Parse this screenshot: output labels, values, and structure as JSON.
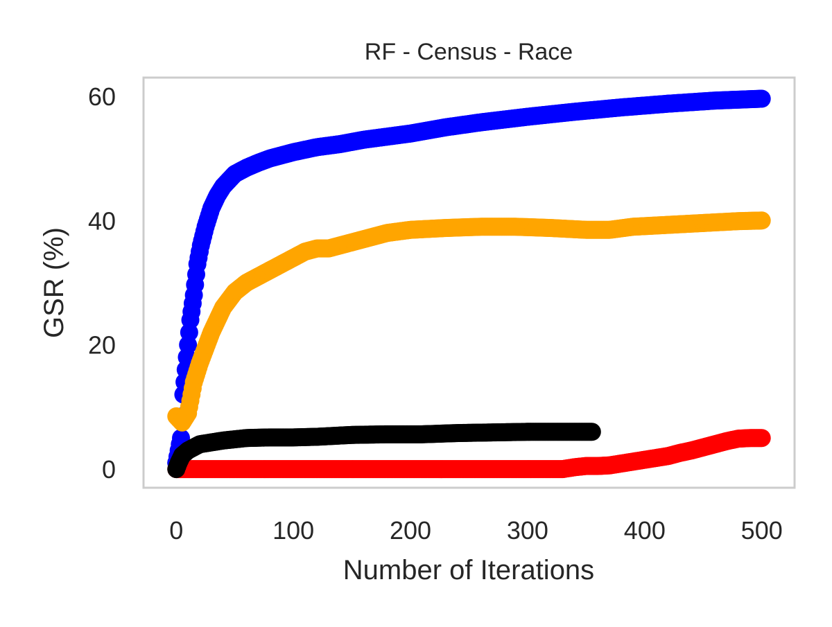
{
  "chart_data": {
    "type": "scatter",
    "title": "RF - Census - Race",
    "xlabel": "Number of Iterations",
    "ylabel": "GSR (%)",
    "xlim": [
      -28,
      528
    ],
    "ylim": [
      -3,
      63
    ],
    "xticks": [
      0,
      100,
      200,
      300,
      400,
      500
    ],
    "yticks": [
      0,
      20,
      40,
      60
    ],
    "grid": false,
    "legend": "none",
    "frame_color": "#cccccc",
    "series": [
      {
        "color": "#0000ff",
        "x": [
          0,
          2,
          4,
          6,
          8,
          10,
          12,
          15,
          18,
          21,
          25,
          30,
          35,
          40,
          50,
          60,
          70,
          80,
          90,
          100,
          120,
          140,
          160,
          180,
          200,
          230,
          260,
          300,
          340,
          380,
          420,
          460,
          500
        ],
        "y": [
          1,
          3,
          5,
          12,
          16,
          20,
          24,
          28,
          33,
          36,
          39,
          42,
          44,
          45.5,
          47.5,
          48.5,
          49.3,
          50,
          50.5,
          51,
          51.8,
          52.3,
          53,
          53.5,
          54,
          55,
          55.8,
          56.7,
          57.5,
          58.2,
          58.8,
          59.3,
          59.6
        ]
      },
      {
        "color": "#ffa500",
        "x": [
          0,
          5,
          10,
          15,
          20,
          25,
          30,
          40,
          50,
          60,
          70,
          80,
          90,
          100,
          110,
          120,
          130,
          140,
          160,
          180,
          200,
          230,
          260,
          290,
          320,
          350,
          370,
          390,
          420,
          450,
          480,
          500
        ],
        "y": [
          8.5,
          7.5,
          9,
          14,
          17,
          19.5,
          22,
          26,
          28.5,
          30,
          31,
          32,
          33,
          34,
          35,
          35.5,
          35.5,
          36,
          37,
          38,
          38.5,
          38.8,
          39,
          39,
          38.8,
          38.5,
          38.5,
          39,
          39.3,
          39.6,
          39.9,
          40
        ]
      },
      {
        "color": "#ff0000",
        "x": [
          0,
          50,
          100,
          150,
          200,
          250,
          300,
          330,
          340,
          350,
          360,
          370,
          380,
          390,
          400,
          410,
          420,
          430,
          440,
          450,
          460,
          470,
          480,
          490,
          500
        ],
        "y": [
          0,
          0,
          0,
          0,
          0,
          0,
          0,
          0,
          0.3,
          0.5,
          0.5,
          0.6,
          0.9,
          1.2,
          1.5,
          1.8,
          2.1,
          2.6,
          3,
          3.5,
          4,
          4.5,
          4.9,
          5,
          5
        ]
      },
      {
        "color": "#000000",
        "x": [
          0,
          2,
          5,
          10,
          15,
          20,
          30,
          40,
          50,
          60,
          80,
          100,
          120,
          150,
          180,
          210,
          240,
          270,
          300,
          330,
          355
        ],
        "y": [
          0,
          1,
          2.2,
          3,
          3.5,
          4,
          4.3,
          4.6,
          4.8,
          5,
          5.1,
          5.1,
          5.2,
          5.5,
          5.6,
          5.6,
          5.8,
          5.9,
          6,
          6,
          6
        ]
      },
      {
        "color": "#008000",
        "x": [
          0,
          1
        ],
        "y": [
          1,
          0.5
        ]
      }
    ]
  }
}
